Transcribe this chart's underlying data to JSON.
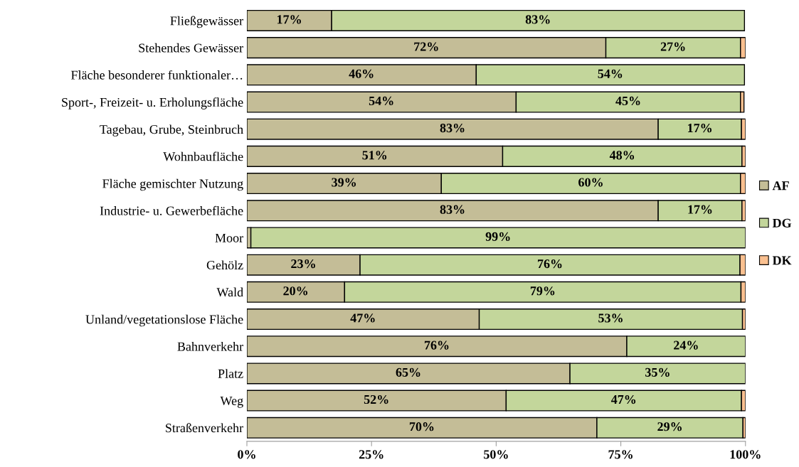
{
  "chart_data": {
    "type": "bar",
    "orientation": "horizontal",
    "stacked": true,
    "categories": [
      "Fließgewässer",
      "Stehendes Gewässer",
      "Fläche besonderer funktionaler…",
      "Sport-, Freizeit- u. Erholungsfläche",
      "Tagebau, Grube, Steinbruch",
      "Wohnbaufläche",
      "Fläche gemischter Nutzung",
      "Industrie- u. Gewerbefläche",
      "Moor",
      "Gehölz",
      "Wald",
      "Unland/vegetationslose Fläche",
      "Bahnverkehr",
      "Platz",
      "Weg",
      "Straßenverkehr"
    ],
    "series": [
      {
        "name": "AF",
        "color": "#c4bd97",
        "values": [
          17,
          72,
          46,
          54,
          82.5,
          51.3,
          39,
          82.5,
          0.8,
          22.7,
          19.6,
          46.6,
          76.2,
          64.8,
          52,
          70.2
        ],
        "value_labels": [
          "17%",
          "72%",
          "46%",
          "54%",
          "83%",
          "51%",
          "39%",
          "83%",
          null,
          "23%",
          "20%",
          "47%",
          "76%",
          "65%",
          "52%",
          "70%"
        ]
      },
      {
        "name": "DG",
        "color": "#c3d69b",
        "values": [
          82.8,
          27,
          53.8,
          45,
          16.7,
          48,
          60,
          16.8,
          99.2,
          76.2,
          79.5,
          52.8,
          23.8,
          35.2,
          47.2,
          29.3
        ],
        "value_labels": [
          "83%",
          "27%",
          "54%",
          "45%",
          "17%",
          "48%",
          "60%",
          "17%",
          "99%",
          "76%",
          "79%",
          "53%",
          "24%",
          "35%",
          "47%",
          "29%"
        ]
      },
      {
        "name": "DK",
        "color": "#fac090",
        "values": [
          null,
          1,
          null,
          0.7,
          0.8,
          0.7,
          1,
          0.7,
          null,
          1.1,
          0.9,
          0.6,
          null,
          null,
          0.8,
          0.5
        ]
      }
    ],
    "xlim": [
      0,
      100
    ],
    "xticks": [
      {
        "value": 0,
        "label": "0%"
      },
      {
        "value": 25,
        "label": "25%"
      },
      {
        "value": 50,
        "label": "50%"
      },
      {
        "value": 75,
        "label": "75%"
      },
      {
        "value": 100,
        "label": "100%"
      }
    ],
    "legend": "right",
    "grid": false
  }
}
